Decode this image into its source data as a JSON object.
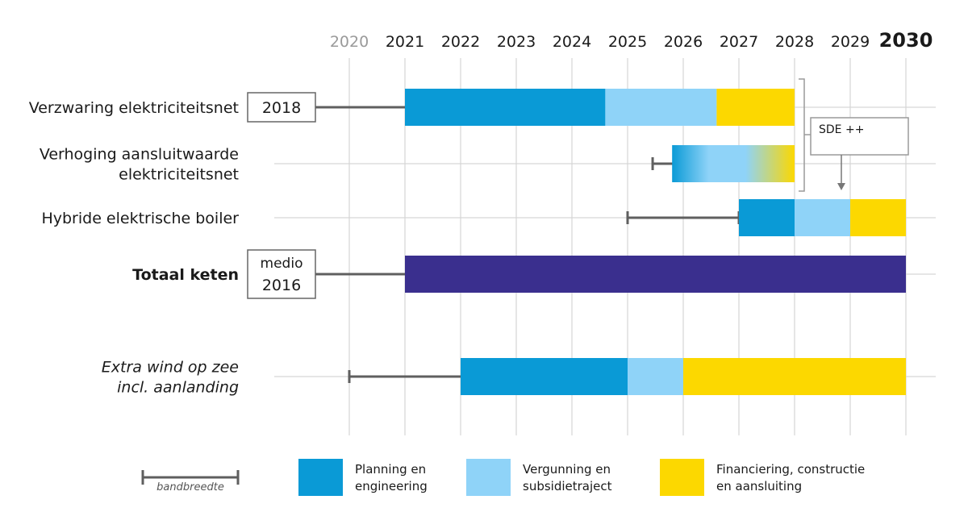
{
  "chart_data": {
    "type": "gantt",
    "x_axis": {
      "years": [
        "2020",
        "2021",
        "2022",
        "2023",
        "2024",
        "2025",
        "2026",
        "2027",
        "2028",
        "2029",
        "2030"
      ],
      "range": [
        2020,
        2030
      ],
      "dim_year": "2020",
      "bold_year": "2030"
    },
    "rows": [
      {
        "id": "verzwaring",
        "label_lines": [
          "Verzwaring elektriciteitsnet"
        ],
        "style": "normal",
        "start_box": {
          "lines": [
            "2018"
          ]
        },
        "band": [
          2018,
          2023
        ],
        "segments": [
          {
            "phase": "planning",
            "start": 2021,
            "end": 2024.6
          },
          {
            "phase": "vergunning",
            "start": 2024.6,
            "end": 2026.6
          },
          {
            "phase": "financiering",
            "start": 2026.6,
            "end": 2028
          }
        ]
      },
      {
        "id": "verhoging",
        "label_lines": [
          "Verhoging aansluitwaarde",
          "elektriciteitsnet"
        ],
        "style": "normal",
        "band": [
          2025.45,
          2026.25
        ],
        "gradient": true,
        "segments": [
          {
            "phase": "planning",
            "start": 2025.8,
            "end": 2026.3
          },
          {
            "phase": "vergunning",
            "start": 2026.3,
            "end": 2027.1
          },
          {
            "phase": "financiering",
            "start": 2027.1,
            "end": 2028
          }
        ]
      },
      {
        "id": "hybride",
        "label_lines": [
          "Hybride elektrische boiler"
        ],
        "style": "normal",
        "band": [
          2025,
          2027
        ],
        "segments": [
          {
            "phase": "planning",
            "start": 2027,
            "end": 2028
          },
          {
            "phase": "vergunning",
            "start": 2028,
            "end": 2029
          },
          {
            "phase": "financiering",
            "start": 2029,
            "end": 2030
          }
        ]
      },
      {
        "id": "totaal",
        "label_lines": [
          "Totaal keten"
        ],
        "style": "bold",
        "start_box": {
          "lines": [
            "medio",
            "2016"
          ]
        },
        "band": [
          2016.5,
          2023
        ],
        "segments": [
          {
            "phase": "totaal",
            "start": 2021,
            "end": 2030
          }
        ]
      },
      {
        "id": "wind",
        "label_lines": [
          "Extra wind op zee",
          "incl. aanlanding"
        ],
        "style": "italic",
        "band": [
          2020,
          2023
        ],
        "segments": [
          {
            "phase": "planning",
            "start": 2022,
            "end": 2025
          },
          {
            "phase": "vergunning",
            "start": 2025,
            "end": 2026
          },
          {
            "phase": "financiering",
            "start": 2026,
            "end": 2030
          }
        ]
      }
    ],
    "annotation": {
      "label": "SDE ++",
      "bracket_rows": [
        "verzwaring",
        "verhoging"
      ],
      "arrow_to": "hybride"
    },
    "legend": {
      "band_label": "bandbreedte",
      "items": [
        {
          "phase": "planning",
          "lines": [
            "Planning en",
            "engineering"
          ]
        },
        {
          "phase": "vergunning",
          "lines": [
            "Vergunning en",
            "subsidietraject"
          ]
        },
        {
          "phase": "financiering",
          "lines": [
            "Financiering, constructie",
            "en aansluiting"
          ]
        }
      ]
    },
    "colors": {
      "planning": "#0a9ad6",
      "vergunning": "#8fd3f8",
      "financiering": "#fcd800",
      "totaal": "#3a2f8e",
      "band": "#5f5f5f",
      "grid": "#d6d6d6",
      "box_border": "#666666"
    }
  }
}
